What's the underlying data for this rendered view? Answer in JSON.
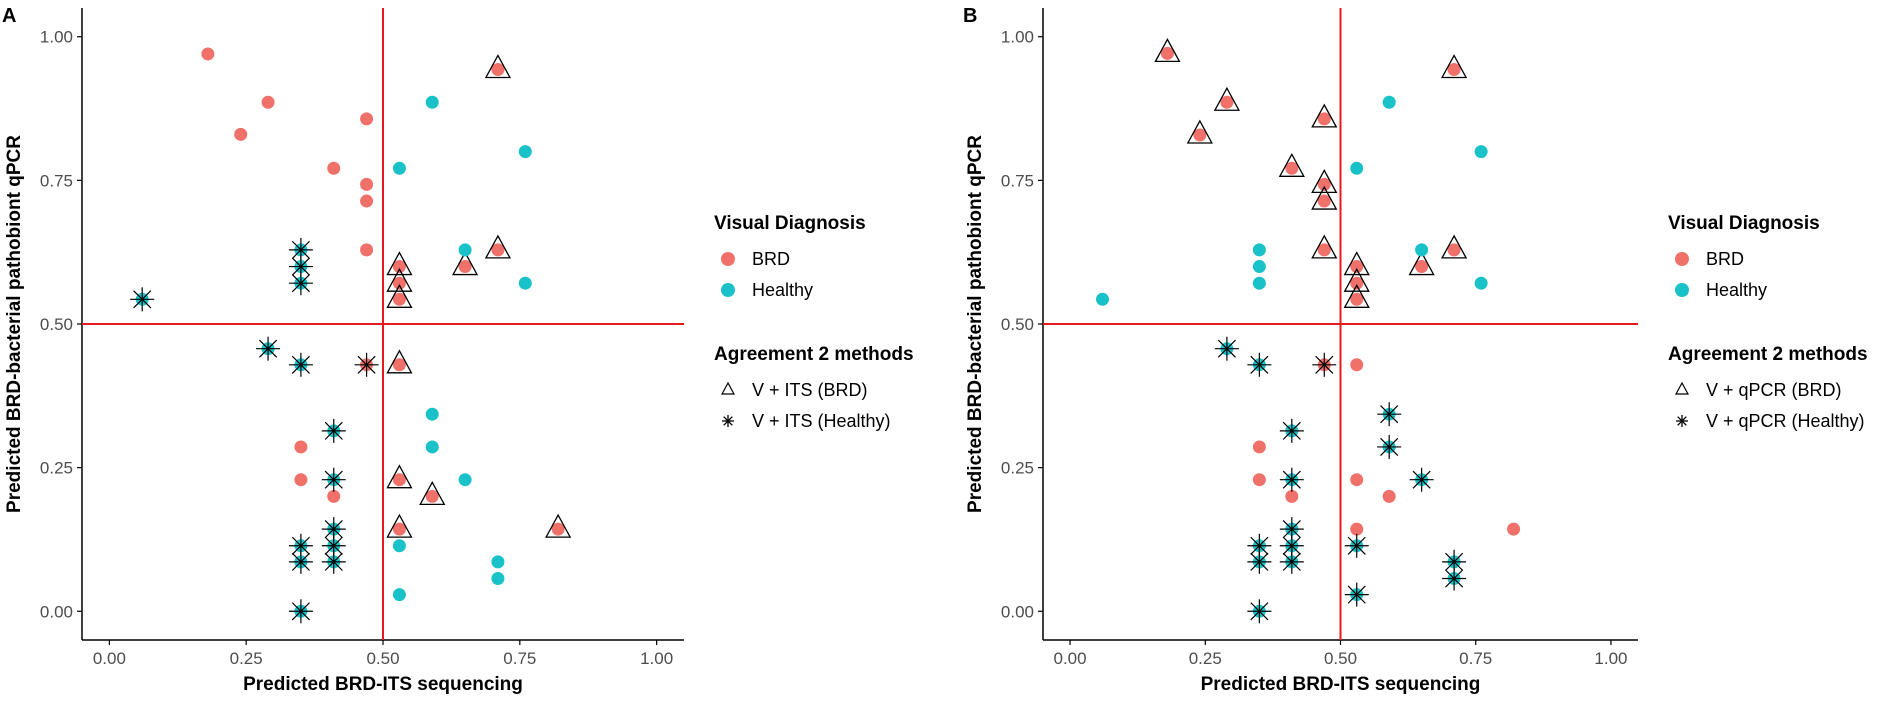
{
  "chart_data": [
    {
      "type": "scatter",
      "panel_label": "A",
      "xlabel": "Predicted BRD-ITS sequencing",
      "ylabel": "Predicted BRD-bacterial pathobiont qPCR",
      "xlim": [
        -0.05,
        1.05
      ],
      "ylim": [
        -0.05,
        1.05
      ],
      "xticks": [
        "0.00",
        "0.25",
        "0.50",
        "0.75",
        "1.00"
      ],
      "yticks": [
        "0.00",
        "0.25",
        "0.50",
        "0.75",
        "1.00"
      ],
      "grid": false,
      "reference_lines": {
        "x": 0.5,
        "y": 0.5,
        "color": "#e41a1c"
      },
      "legend_title_color": "Visual Diagnosis",
      "legend_title_shape": "Agreement 2 methods",
      "legend_shape_labels": [
        "V + ITS (BRD)",
        "V + ITS (Healthy)"
      ],
      "points": [
        {
          "x": 0.18,
          "y": 0.97,
          "diag": "BRD",
          "agree": ""
        },
        {
          "x": 0.24,
          "y": 0.83,
          "diag": "BRD",
          "agree": ""
        },
        {
          "x": 0.29,
          "y": 0.886,
          "diag": "BRD",
          "agree": ""
        },
        {
          "x": 0.41,
          "y": 0.771,
          "diag": "BRD",
          "agree": ""
        },
        {
          "x": 0.47,
          "y": 0.857,
          "diag": "BRD",
          "agree": ""
        },
        {
          "x": 0.47,
          "y": 0.743,
          "diag": "BRD",
          "agree": ""
        },
        {
          "x": 0.47,
          "y": 0.714,
          "diag": "BRD",
          "agree": ""
        },
        {
          "x": 0.47,
          "y": 0.629,
          "diag": "BRD",
          "agree": ""
        },
        {
          "x": 0.71,
          "y": 0.943,
          "diag": "BRD",
          "agree": "BRD"
        },
        {
          "x": 0.65,
          "y": 0.6,
          "diag": "BRD",
          "agree": "BRD"
        },
        {
          "x": 0.71,
          "y": 0.629,
          "diag": "BRD",
          "agree": "BRD"
        },
        {
          "x": 0.53,
          "y": 0.6,
          "diag": "BRD",
          "agree": "BRD"
        },
        {
          "x": 0.53,
          "y": 0.571,
          "diag": "BRD",
          "agree": "BRD"
        },
        {
          "x": 0.53,
          "y": 0.543,
          "diag": "BRD",
          "agree": "BRD"
        },
        {
          "x": 0.53,
          "y": 0.429,
          "diag": "BRD",
          "agree": "BRD"
        },
        {
          "x": 0.53,
          "y": 0.229,
          "diag": "BRD",
          "agree": "BRD"
        },
        {
          "x": 0.59,
          "y": 0.2,
          "diag": "BRD",
          "agree": "BRD"
        },
        {
          "x": 0.53,
          "y": 0.143,
          "diag": "BRD",
          "agree": "BRD"
        },
        {
          "x": 0.82,
          "y": 0.143,
          "diag": "BRD",
          "agree": "BRD"
        },
        {
          "x": 0.35,
          "y": 0.286,
          "diag": "BRD",
          "agree": ""
        },
        {
          "x": 0.35,
          "y": 0.229,
          "diag": "BRD",
          "agree": ""
        },
        {
          "x": 0.41,
          "y": 0.2,
          "diag": "BRD",
          "agree": ""
        },
        {
          "x": 0.47,
          "y": 0.429,
          "diag": "BRD",
          "agree": "Healthy"
        },
        {
          "x": 0.59,
          "y": 0.886,
          "diag": "Healthy",
          "agree": ""
        },
        {
          "x": 0.53,
          "y": 0.771,
          "diag": "Healthy",
          "agree": ""
        },
        {
          "x": 0.76,
          "y": 0.8,
          "diag": "Healthy",
          "agree": ""
        },
        {
          "x": 0.65,
          "y": 0.629,
          "diag": "Healthy",
          "agree": ""
        },
        {
          "x": 0.76,
          "y": 0.571,
          "diag": "Healthy",
          "agree": ""
        },
        {
          "x": 0.59,
          "y": 0.343,
          "diag": "Healthy",
          "agree": ""
        },
        {
          "x": 0.59,
          "y": 0.286,
          "diag": "Healthy",
          "agree": ""
        },
        {
          "x": 0.65,
          "y": 0.229,
          "diag": "Healthy",
          "agree": ""
        },
        {
          "x": 0.53,
          "y": 0.114,
          "diag": "Healthy",
          "agree": ""
        },
        {
          "x": 0.71,
          "y": 0.086,
          "diag": "Healthy",
          "agree": ""
        },
        {
          "x": 0.71,
          "y": 0.057,
          "diag": "Healthy",
          "agree": ""
        },
        {
          "x": 0.53,
          "y": 0.029,
          "diag": "Healthy",
          "agree": ""
        },
        {
          "x": 0.06,
          "y": 0.543,
          "diag": "Healthy",
          "agree": "Healthy"
        },
        {
          "x": 0.35,
          "y": 0.629,
          "diag": "Healthy",
          "agree": "Healthy"
        },
        {
          "x": 0.35,
          "y": 0.6,
          "diag": "Healthy",
          "agree": "Healthy"
        },
        {
          "x": 0.35,
          "y": 0.571,
          "diag": "Healthy",
          "agree": "Healthy"
        },
        {
          "x": 0.29,
          "y": 0.457,
          "diag": "Healthy",
          "agree": "Healthy"
        },
        {
          "x": 0.35,
          "y": 0.429,
          "diag": "Healthy",
          "agree": "Healthy"
        },
        {
          "x": 0.41,
          "y": 0.314,
          "diag": "Healthy",
          "agree": "Healthy"
        },
        {
          "x": 0.41,
          "y": 0.229,
          "diag": "Healthy",
          "agree": "Healthy"
        },
        {
          "x": 0.41,
          "y": 0.143,
          "diag": "Healthy",
          "agree": "Healthy"
        },
        {
          "x": 0.41,
          "y": 0.114,
          "diag": "Healthy",
          "agree": "Healthy"
        },
        {
          "x": 0.41,
          "y": 0.086,
          "diag": "Healthy",
          "agree": "Healthy"
        },
        {
          "x": 0.35,
          "y": 0.114,
          "diag": "Healthy",
          "agree": "Healthy"
        },
        {
          "x": 0.35,
          "y": 0.086,
          "diag": "Healthy",
          "agree": "Healthy"
        },
        {
          "x": 0.35,
          "y": 0.0,
          "diag": "Healthy",
          "agree": "Healthy"
        }
      ]
    },
    {
      "type": "scatter",
      "panel_label": "B",
      "xlabel": "Predicted BRD-ITS sequencing",
      "ylabel": "Predicted BRD-bacterial pathobiont qPCR",
      "xlim": [
        -0.05,
        1.05
      ],
      "ylim": [
        -0.05,
        1.05
      ],
      "xticks": [
        "0.00",
        "0.25",
        "0.50",
        "0.75",
        "1.00"
      ],
      "yticks": [
        "0.00",
        "0.25",
        "0.50",
        "0.75",
        "1.00"
      ],
      "grid": false,
      "reference_lines": {
        "x": 0.5,
        "y": 0.5,
        "color": "#e41a1c"
      },
      "legend_title_color": "Visual Diagnosis",
      "legend_title_shape": "Agreement 2 methods",
      "legend_shape_labels": [
        "V + qPCR (BRD)",
        "V + qPCR (Healthy)"
      ],
      "points": [
        {
          "x": 0.18,
          "y": 0.971,
          "diag": "BRD",
          "agree": "BRD"
        },
        {
          "x": 0.24,
          "y": 0.829,
          "diag": "BRD",
          "agree": "BRD"
        },
        {
          "x": 0.29,
          "y": 0.886,
          "diag": "BRD",
          "agree": "BRD"
        },
        {
          "x": 0.41,
          "y": 0.771,
          "diag": "BRD",
          "agree": "BRD"
        },
        {
          "x": 0.47,
          "y": 0.857,
          "diag": "BRD",
          "agree": "BRD"
        },
        {
          "x": 0.47,
          "y": 0.743,
          "diag": "BRD",
          "agree": "BRD"
        },
        {
          "x": 0.47,
          "y": 0.714,
          "diag": "BRD",
          "agree": "BRD"
        },
        {
          "x": 0.47,
          "y": 0.629,
          "diag": "BRD",
          "agree": "BRD"
        },
        {
          "x": 0.71,
          "y": 0.943,
          "diag": "BRD",
          "agree": "BRD"
        },
        {
          "x": 0.65,
          "y": 0.6,
          "diag": "BRD",
          "agree": "BRD"
        },
        {
          "x": 0.71,
          "y": 0.629,
          "diag": "BRD",
          "agree": "BRD"
        },
        {
          "x": 0.53,
          "y": 0.6,
          "diag": "BRD",
          "agree": "BRD"
        },
        {
          "x": 0.53,
          "y": 0.571,
          "diag": "BRD",
          "agree": "BRD"
        },
        {
          "x": 0.53,
          "y": 0.543,
          "diag": "BRD",
          "agree": "BRD"
        },
        {
          "x": 0.53,
          "y": 0.429,
          "diag": "BRD",
          "agree": ""
        },
        {
          "x": 0.53,
          "y": 0.229,
          "diag": "BRD",
          "agree": ""
        },
        {
          "x": 0.59,
          "y": 0.2,
          "diag": "BRD",
          "agree": ""
        },
        {
          "x": 0.53,
          "y": 0.143,
          "diag": "BRD",
          "agree": ""
        },
        {
          "x": 0.82,
          "y": 0.143,
          "diag": "BRD",
          "agree": ""
        },
        {
          "x": 0.35,
          "y": 0.286,
          "diag": "BRD",
          "agree": ""
        },
        {
          "x": 0.35,
          "y": 0.229,
          "diag": "BRD",
          "agree": ""
        },
        {
          "x": 0.41,
          "y": 0.2,
          "diag": "BRD",
          "agree": ""
        },
        {
          "x": 0.47,
          "y": 0.429,
          "diag": "BRD",
          "agree": "Healthy"
        },
        {
          "x": 0.59,
          "y": 0.886,
          "diag": "Healthy",
          "agree": ""
        },
        {
          "x": 0.53,
          "y": 0.771,
          "diag": "Healthy",
          "agree": ""
        },
        {
          "x": 0.76,
          "y": 0.8,
          "diag": "Healthy",
          "agree": ""
        },
        {
          "x": 0.65,
          "y": 0.629,
          "diag": "Healthy",
          "agree": ""
        },
        {
          "x": 0.76,
          "y": 0.571,
          "diag": "Healthy",
          "agree": ""
        },
        {
          "x": 0.06,
          "y": 0.543,
          "diag": "Healthy",
          "agree": ""
        },
        {
          "x": 0.35,
          "y": 0.629,
          "diag": "Healthy",
          "agree": ""
        },
        {
          "x": 0.35,
          "y": 0.6,
          "diag": "Healthy",
          "agree": ""
        },
        {
          "x": 0.35,
          "y": 0.571,
          "diag": "Healthy",
          "agree": ""
        },
        {
          "x": 0.29,
          "y": 0.457,
          "diag": "Healthy",
          "agree": "Healthy"
        },
        {
          "x": 0.35,
          "y": 0.429,
          "diag": "Healthy",
          "agree": "Healthy"
        },
        {
          "x": 0.41,
          "y": 0.314,
          "diag": "Healthy",
          "agree": "Healthy"
        },
        {
          "x": 0.41,
          "y": 0.229,
          "diag": "Healthy",
          "agree": "Healthy"
        },
        {
          "x": 0.41,
          "y": 0.143,
          "diag": "Healthy",
          "agree": "Healthy"
        },
        {
          "x": 0.41,
          "y": 0.114,
          "diag": "Healthy",
          "agree": "Healthy"
        },
        {
          "x": 0.41,
          "y": 0.086,
          "diag": "Healthy",
          "agree": "Healthy"
        },
        {
          "x": 0.35,
          "y": 0.114,
          "diag": "Healthy",
          "agree": "Healthy"
        },
        {
          "x": 0.35,
          "y": 0.086,
          "diag": "Healthy",
          "agree": "Healthy"
        },
        {
          "x": 0.35,
          "y": 0.0,
          "diag": "Healthy",
          "agree": "Healthy"
        },
        {
          "x": 0.59,
          "y": 0.343,
          "diag": "Healthy",
          "agree": "Healthy"
        },
        {
          "x": 0.59,
          "y": 0.286,
          "diag": "Healthy",
          "agree": "Healthy"
        },
        {
          "x": 0.65,
          "y": 0.229,
          "diag": "Healthy",
          "agree": "Healthy"
        },
        {
          "x": 0.53,
          "y": 0.114,
          "diag": "Healthy",
          "agree": "Healthy"
        },
        {
          "x": 0.71,
          "y": 0.086,
          "diag": "Healthy",
          "agree": "Healthy"
        },
        {
          "x": 0.71,
          "y": 0.057,
          "diag": "Healthy",
          "agree": "Healthy"
        },
        {
          "x": 0.53,
          "y": 0.029,
          "diag": "Healthy",
          "agree": "Healthy"
        }
      ]
    }
  ],
  "legend": {
    "color_labels": [
      "BRD",
      "Healthy"
    ]
  },
  "colors": {
    "brd": "#f0706a",
    "healthy": "#19c1c8",
    "reference_line": "#e41a1c",
    "axis": "#000000",
    "tick_text": "#4d4d4d"
  }
}
